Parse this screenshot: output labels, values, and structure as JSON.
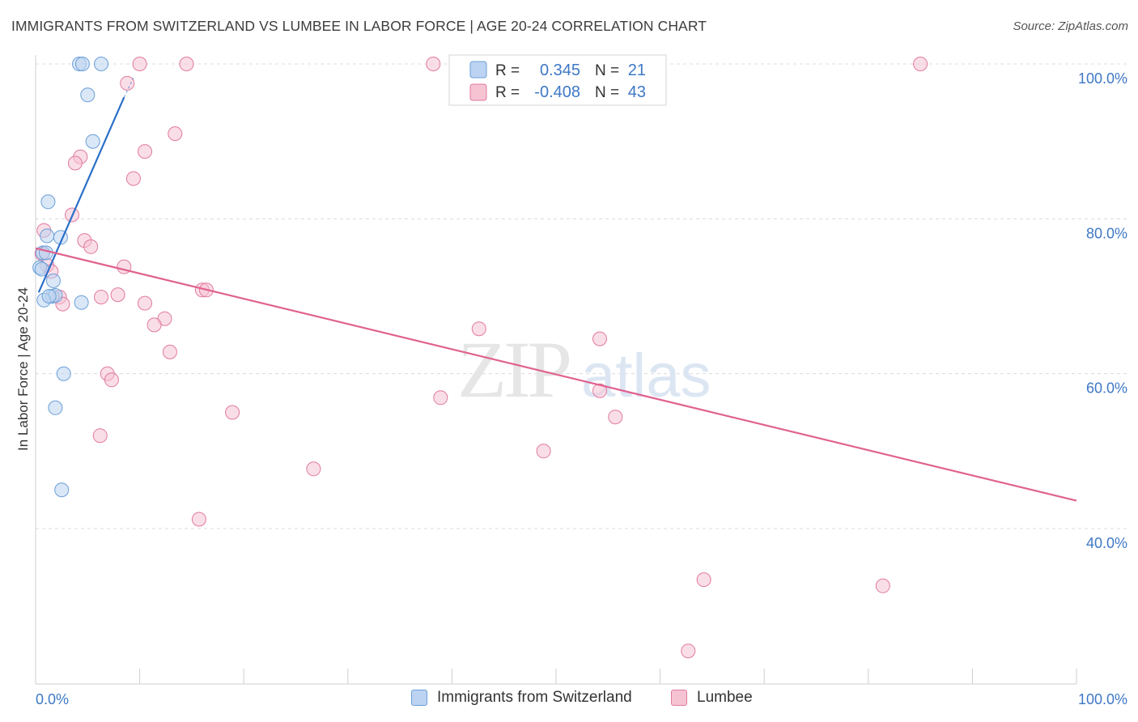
{
  "title": "IMMIGRANTS FROM SWITZERLAND VS LUMBEE IN LABOR FORCE | AGE 20-24 CORRELATION CHART",
  "source": "Source: ZipAtlas.com",
  "watermark": {
    "zip": "ZIP",
    "atlas": "atlas"
  },
  "colors": {
    "blue": "#6a9fd8",
    "blue_fill": "#bcd3f1",
    "blue_line": "#2b6fc8",
    "pink": "#e07aa0",
    "pink_fill": "#f6c3d3",
    "pink_line": "#e0628f",
    "axis_text": "#3e78c6",
    "grid": "#dcdcdc"
  },
  "legend_box": {
    "rows": [
      {
        "r_label": "R =",
        "r_value": "0.345",
        "n_label": "N =",
        "n_value": "21",
        "series": "blue"
      },
      {
        "r_label": "R =",
        "r_value": "-0.408",
        "n_label": "N =",
        "n_value": "43",
        "series": "pink"
      }
    ]
  },
  "chart_data": {
    "type": "scatter",
    "ylabel": "In Labor Force | Age 20-24",
    "x_ticks": {
      "left": "0.0%",
      "right": "100.0%"
    },
    "y_ticks": [
      "100.0%",
      "80.0%",
      "60.0%",
      "40.0%"
    ],
    "xlim": [
      0,
      100
    ],
    "ylim": [
      22,
      102
    ],
    "grid": true,
    "series": [
      {
        "name": "Immigrants from Switzerland",
        "color": "blue",
        "trend": {
          "x": [
            0.3,
            8.5
          ],
          "y": [
            70.5,
            95.7
          ],
          "dash_to": [
            9.4,
            98.2
          ]
        },
        "points": [
          [
            4.2,
            100.0
          ],
          [
            4.5,
            100.0
          ],
          [
            6.3,
            100.0
          ],
          [
            5.0,
            96.0
          ],
          [
            5.5,
            90.0
          ],
          [
            1.2,
            82.2
          ],
          [
            1.1,
            77.8
          ],
          [
            2.4,
            77.6
          ],
          [
            0.7,
            75.6
          ],
          [
            1.0,
            75.6
          ],
          [
            0.4,
            73.7
          ],
          [
            0.6,
            73.5
          ],
          [
            1.7,
            72.0
          ],
          [
            1.6,
            70.0
          ],
          [
            1.9,
            70.1
          ],
          [
            0.8,
            69.5
          ],
          [
            4.4,
            69.2
          ],
          [
            2.7,
            60.0
          ],
          [
            1.9,
            55.6
          ],
          [
            2.5,
            45.0
          ],
          [
            1.3,
            70.0
          ]
        ]
      },
      {
        "name": "Lumbee",
        "color": "pink",
        "trend": {
          "x": [
            0.0,
            100.0
          ],
          "y": [
            76.2,
            43.6
          ]
        },
        "points": [
          [
            10.0,
            100.0
          ],
          [
            14.5,
            100.0
          ],
          [
            38.2,
            100.0
          ],
          [
            85.0,
            100.0
          ],
          [
            8.8,
            97.5
          ],
          [
            13.4,
            91.0
          ],
          [
            10.5,
            88.7
          ],
          [
            4.3,
            88.0
          ],
          [
            3.8,
            87.2
          ],
          [
            9.4,
            85.2
          ],
          [
            3.5,
            80.5
          ],
          [
            0.8,
            78.5
          ],
          [
            4.7,
            77.2
          ],
          [
            5.3,
            76.4
          ],
          [
            0.6,
            75.5
          ],
          [
            1.1,
            74.0
          ],
          [
            8.5,
            73.8
          ],
          [
            1.5,
            73.2
          ],
          [
            16.0,
            70.8
          ],
          [
            16.4,
            70.8
          ],
          [
            7.9,
            70.2
          ],
          [
            6.3,
            69.9
          ],
          [
            2.3,
            69.9
          ],
          [
            2.6,
            69.0
          ],
          [
            10.5,
            69.1
          ],
          [
            12.4,
            67.1
          ],
          [
            11.4,
            66.3
          ],
          [
            42.6,
            65.8
          ],
          [
            54.2,
            64.5
          ],
          [
            12.9,
            62.8
          ],
          [
            6.9,
            60.0
          ],
          [
            7.3,
            59.2
          ],
          [
            54.2,
            57.8
          ],
          [
            38.9,
            56.9
          ],
          [
            18.9,
            55.0
          ],
          [
            55.7,
            54.4
          ],
          [
            6.2,
            52.0
          ],
          [
            48.8,
            50.0
          ],
          [
            26.7,
            47.7
          ],
          [
            15.7,
            41.2
          ],
          [
            64.2,
            33.4
          ],
          [
            81.4,
            32.6
          ],
          [
            62.7,
            24.2
          ]
        ]
      }
    ]
  }
}
